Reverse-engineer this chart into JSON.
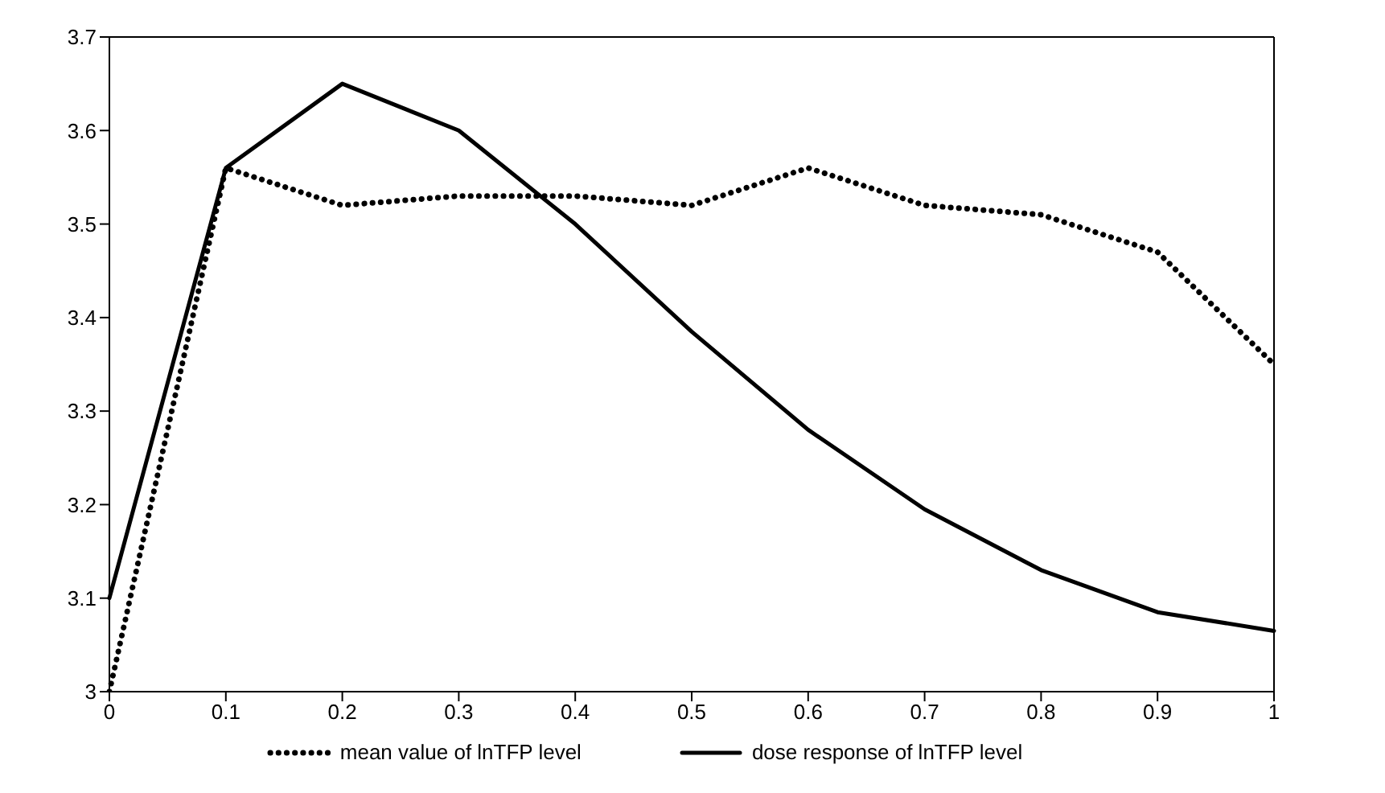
{
  "chart_data": {
    "type": "line",
    "categories": [
      "0",
      "0.1",
      "0.2",
      "0.3",
      "0.4",
      "0.5",
      "0.6",
      "0.7",
      "0.8",
      "0.9",
      "1"
    ],
    "series": [
      {
        "name": "mean value of lnTFP level",
        "color": "#000000",
        "line_style": "dotted",
        "values": [
          3.0,
          3.56,
          3.52,
          3.53,
          3.53,
          3.52,
          3.56,
          3.52,
          3.51,
          3.47,
          3.35
        ]
      },
      {
        "name": "dose response of lnTFP level",
        "color": "#000000",
        "line_style": "solid",
        "values": [
          3.1,
          3.56,
          3.65,
          3.6,
          3.5,
          3.385,
          3.28,
          3.195,
          3.13,
          3.085,
          3.065
        ]
      }
    ],
    "ylim": [
      3,
      3.7
    ],
    "yticks": [
      3,
      3.1,
      3.2,
      3.3,
      3.4,
      3.5,
      3.6,
      3.7
    ],
    "grid": false,
    "legend": "bottom"
  }
}
